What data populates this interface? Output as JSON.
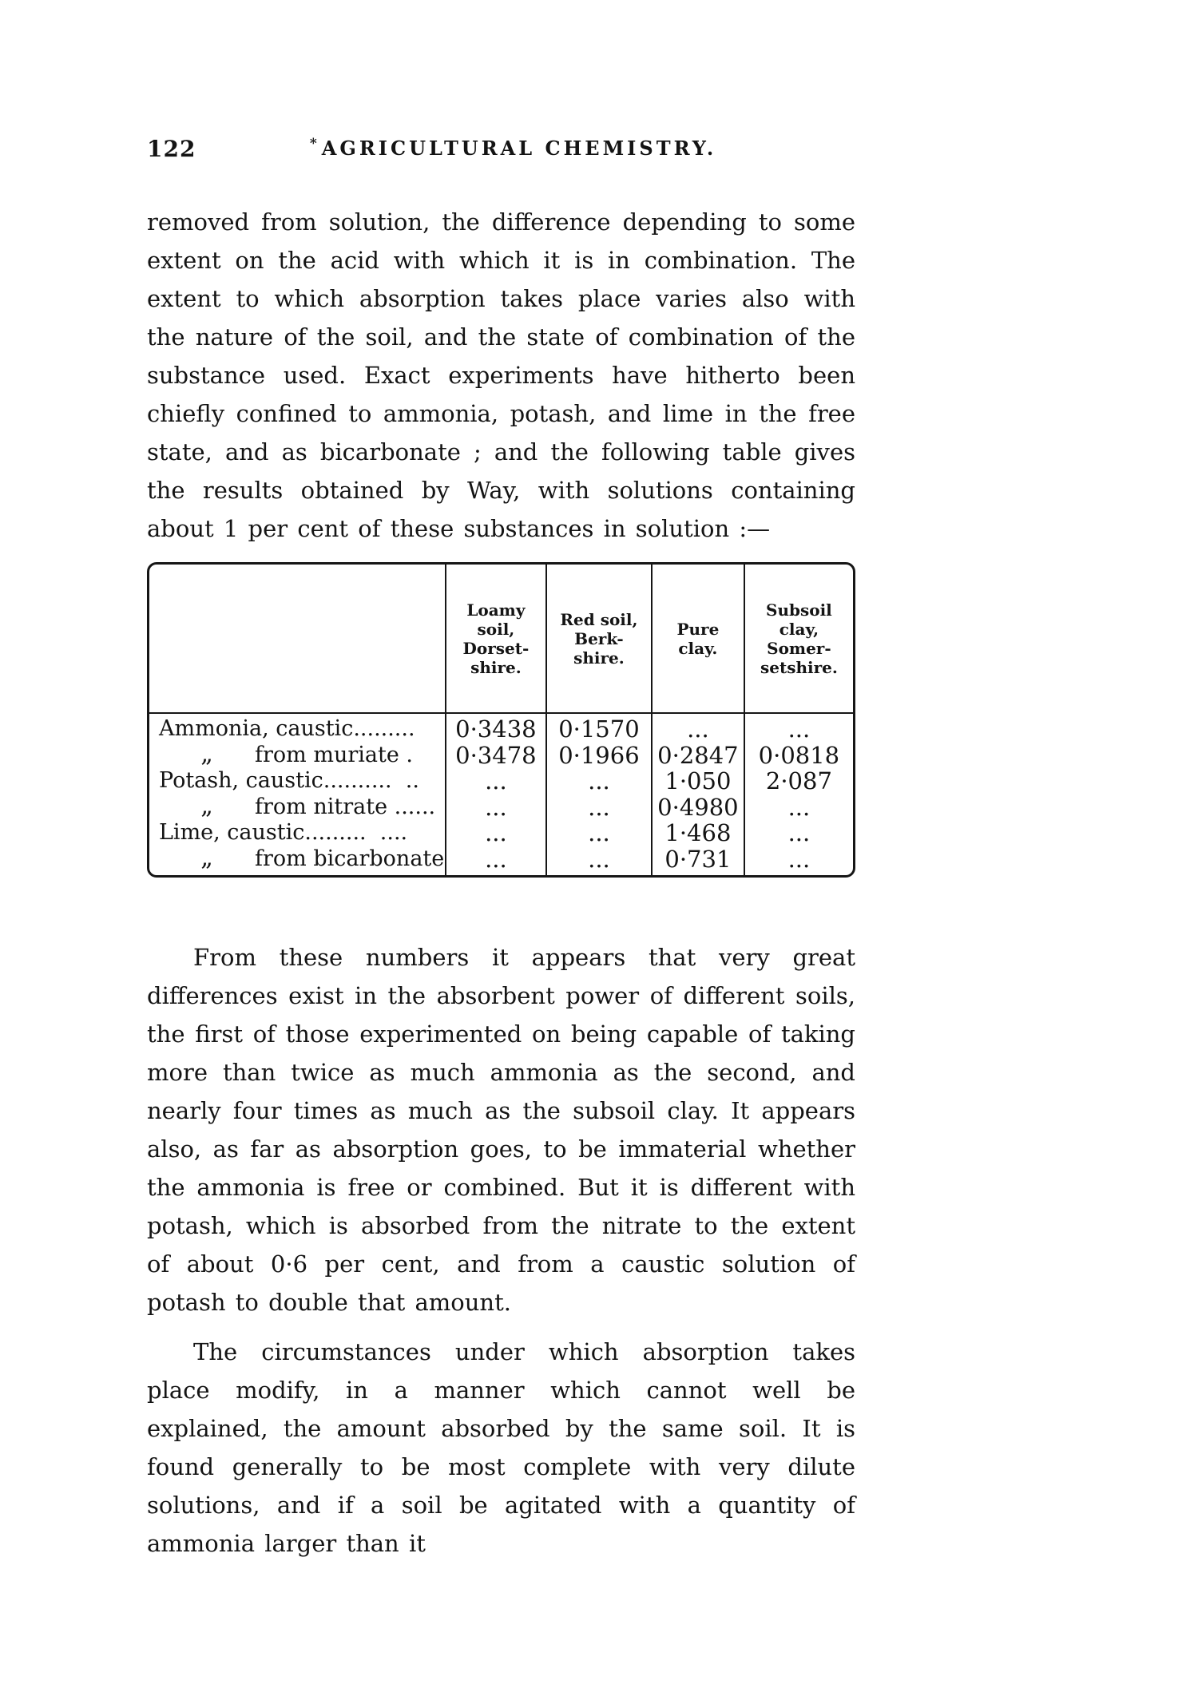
{
  "page": {
    "number": "122",
    "head_mark": "*",
    "running_head": "AGRICULTURAL CHEMISTRY."
  },
  "paragraphs": {
    "p1": "removed from solution, the difference depending to some extent on the acid with which it is in combination.  The extent to which absorption takes place varies also with the nature of the soil, and the state of combination of the substance used.  Exact experiments have hitherto been chiefly confined to ammonia, potash, and lime in the free state, and as bicarbonate ; and the following table gives the results obtained by Way, with solutions containing about 1 per cent of these substances in solution :—",
    "p2": "From these numbers it appears that very great differences exist in the absorbent power of different soils, the first of those experimented on being capable of taking more than twice as much ammonia as the second, and nearly four times as much as the subsoil clay.  It appears also, as far as absorption goes, to be immaterial whether the ammonia is free or combined.  But it is different with potash, which is absorbed from the nitrate to the extent of about 0·6 per cent, and from a caustic solution of potash to double that amount.",
    "p3": "The circumstances under which absorption takes place modify, in a manner which cannot well be explained, the amount absorbed by the same soil.  It is found generally to be most complete with very dilute solutions, and if a soil be agitated with a quantity of ammonia larger than it"
  },
  "table": {
    "columns": [
      "Loamy\nsoil,\nDorset-\nshire.",
      "Red soil,\nBerk-\nshire.",
      "Pure\nclay.",
      "Subsoil\nclay,\nSomer-\nsetshire."
    ],
    "rows": [
      {
        "ditto": "",
        "substance": "Ammonia, caustic.........",
        "values": [
          "0·3438",
          "0·1570",
          "...",
          "..."
        ]
      },
      {
        "ditto": "„",
        "substance": "from muriate .",
        "values": [
          "0·3478",
          "0·1966",
          "0·2847",
          "0·0818"
        ]
      },
      {
        "ditto": "",
        "substance": "Potash, caustic..........  ..",
        "values": [
          "...",
          "...",
          "1·050",
          "2·087"
        ]
      },
      {
        "ditto": "„",
        "substance": "from nitrate ......",
        "values": [
          "...",
          "...",
          "0·4980",
          "..."
        ]
      },
      {
        "ditto": "",
        "substance": "Lime, caustic.........  ....",
        "values": [
          "...",
          "...",
          "1·468",
          "..."
        ]
      },
      {
        "ditto": "„",
        "substance": "from bicarbonate..",
        "values": [
          "...",
          "...",
          "0·731",
          "..."
        ]
      }
    ]
  }
}
